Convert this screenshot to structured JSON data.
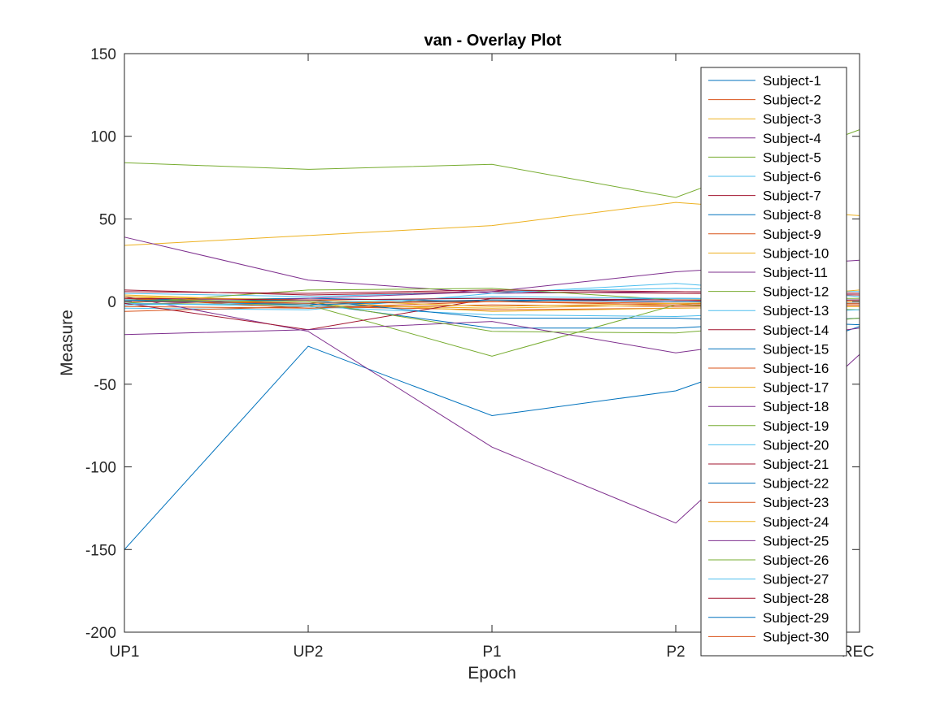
{
  "chart_data": {
    "type": "line",
    "title": "van - Overlay Plot",
    "xlabel": "Epoch",
    "ylabel": "Measure",
    "categories": [
      "UP1",
      "UP2",
      "P1",
      "P2",
      "REC"
    ],
    "ylim": [
      -200,
      150
    ],
    "yticks": [
      -200,
      -150,
      -100,
      -50,
      0,
      50,
      100,
      150
    ],
    "grid": false,
    "legend": "top-right",
    "series": [
      {
        "name": "Subject-1",
        "color": "#0072BD",
        "values": [
          -150,
          -27,
          -69,
          -54,
          -15
        ]
      },
      {
        "name": "Subject-2",
        "color": "#D95319",
        "values": [
          2,
          -1,
          1,
          0,
          1
        ]
      },
      {
        "name": "Subject-3",
        "color": "#EDB120",
        "values": [
          34,
          40,
          46,
          60,
          52
        ]
      },
      {
        "name": "Subject-4",
        "color": "#7E2F8E",
        "values": [
          39,
          13,
          5,
          6,
          5
        ]
      },
      {
        "name": "Subject-5",
        "color": "#77AC30",
        "values": [
          84,
          80,
          83,
          63,
          104
        ]
      },
      {
        "name": "Subject-6",
        "color": "#4DBEEE",
        "values": [
          5,
          3,
          6,
          8,
          6
        ]
      },
      {
        "name": "Subject-7",
        "color": "#A2142F",
        "values": [
          7,
          4,
          6,
          5,
          4
        ]
      },
      {
        "name": "Subject-8",
        "color": "#0072BD",
        "values": [
          1,
          2,
          0,
          2,
          1
        ]
      },
      {
        "name": "Subject-9",
        "color": "#D95319",
        "values": [
          -3,
          -4,
          -2,
          -3,
          -2
        ]
      },
      {
        "name": "Subject-10",
        "color": "#EDB120",
        "values": [
          3,
          -2,
          -4,
          -2,
          7
        ]
      },
      {
        "name": "Subject-11",
        "color": "#7E2F8E",
        "values": [
          -2,
          2,
          6,
          18,
          25
        ]
      },
      {
        "name": "Subject-12",
        "color": "#77AC30",
        "values": [
          -1,
          7,
          8,
          1,
          2
        ]
      },
      {
        "name": "Subject-13",
        "color": "#4DBEEE",
        "values": [
          -4,
          -5,
          5,
          11,
          3
        ]
      },
      {
        "name": "Subject-14",
        "color": "#A2142F",
        "values": [
          6,
          5,
          7,
          6,
          5
        ]
      },
      {
        "name": "Subject-15",
        "color": "#0072BD",
        "values": [
          0,
          -1,
          -16,
          -16,
          -10
        ]
      },
      {
        "name": "Subject-16",
        "color": "#D95319",
        "values": [
          -6,
          -3,
          -5,
          -4,
          -3
        ]
      },
      {
        "name": "Subject-17",
        "color": "#EDB120",
        "values": [
          4,
          0,
          -6,
          -4,
          -3
        ]
      },
      {
        "name": "Subject-18",
        "color": "#7E2F8E",
        "values": [
          3,
          -18,
          -88,
          -134,
          -32
        ]
      },
      {
        "name": "Subject-19",
        "color": "#77AC30",
        "values": [
          -1,
          -2,
          -33,
          -2,
          -5
        ]
      },
      {
        "name": "Subject-20",
        "color": "#4DBEEE",
        "values": [
          -1,
          -3,
          -8,
          -9,
          -5
        ]
      },
      {
        "name": "Subject-21",
        "color": "#A2142F",
        "values": [
          -1,
          -17,
          2,
          1,
          0
        ]
      },
      {
        "name": "Subject-22",
        "color": "#0072BD",
        "values": [
          0,
          1,
          -10,
          -10,
          -14
        ]
      },
      {
        "name": "Subject-23",
        "color": "#D95319",
        "values": [
          2,
          -4,
          0,
          -1,
          -2
        ]
      },
      {
        "name": "Subject-24",
        "color": "#EDB120",
        "values": [
          3,
          1,
          -3,
          -1,
          0
        ]
      },
      {
        "name": "Subject-25",
        "color": "#7E2F8E",
        "values": [
          -20,
          -17,
          -12,
          -31,
          -16
        ]
      },
      {
        "name": "Subject-26",
        "color": "#77AC30",
        "values": [
          1,
          0,
          -18,
          -19,
          -10
        ]
      },
      {
        "name": "Subject-27",
        "color": "#4DBEEE",
        "values": [
          -2,
          -1,
          3,
          2,
          1
        ]
      },
      {
        "name": "Subject-28",
        "color": "#A2142F",
        "values": [
          2,
          1,
          2,
          0,
          1
        ]
      },
      {
        "name": "Subject-29",
        "color": "#0072BD",
        "values": [
          1,
          -2,
          1,
          0,
          -1
        ]
      },
      {
        "name": "Subject-30",
        "color": "#D95319",
        "values": [
          0,
          -1,
          0,
          -2,
          -1
        ]
      }
    ]
  }
}
